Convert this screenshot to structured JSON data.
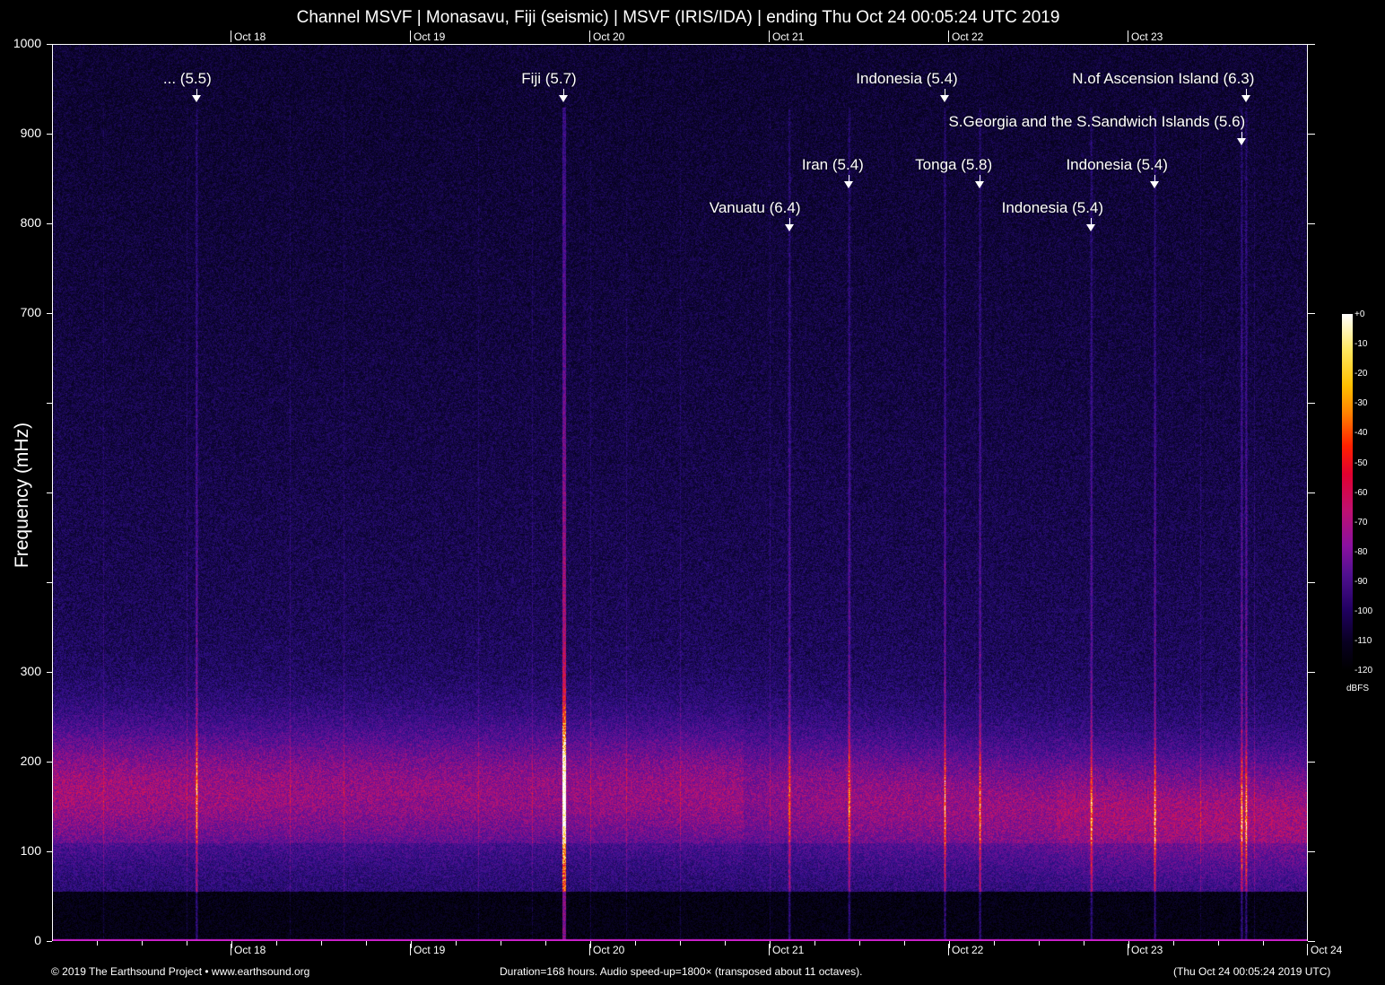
{
  "header": {
    "title": "Channel MSVF | Monasavu, Fiji (seismic) | MSVF (IRIS/IDA) | ending Thu Oct 24 00:05:24 UTC 2019"
  },
  "footer": {
    "copyright": "© 2019 The Earthsound Project • www.earthsound.org",
    "info": "Duration=168 hours. Audio speed-up=1800× (transposed about 11 octaves).",
    "end_time": "(Thu Oct 24 00:05:24 2019 UTC)"
  },
  "chart_data": {
    "type": "heatmap",
    "title": "Channel MSVF | Monasavu, Fiji (seismic) | MSVF (IRIS/IDA) | ending Thu Oct 24 00:05:24 UTC 2019",
    "xlabel": "",
    "ylabel": "Frequency (mHz)",
    "xlim_hours": [
      0,
      168
    ],
    "ylim": [
      0,
      1000
    ],
    "x_ticks": [
      {
        "label": "Oct 18",
        "hours": 24
      },
      {
        "label": "Oct 19",
        "hours": 48
      },
      {
        "label": "Oct 20",
        "hours": 72
      },
      {
        "label": "Oct 21",
        "hours": 96
      },
      {
        "label": "Oct 22",
        "hours": 120
      },
      {
        "label": "Oct 23",
        "hours": 144
      },
      {
        "label": "Oct 24",
        "hours": 168
      }
    ],
    "y_ticks": [
      {
        "v": 0,
        "label": "0"
      },
      {
        "v": 100,
        "label": "100"
      },
      {
        "v": 200,
        "label": "200"
      },
      {
        "v": 300,
        "label": "300"
      },
      {
        "v": 400,
        "label": ""
      },
      {
        "v": 500,
        "label": ""
      },
      {
        "v": 600,
        "label": ""
      },
      {
        "v": 700,
        "label": "700"
      },
      {
        "v": 800,
        "label": "800"
      },
      {
        "v": 900,
        "label": "900"
      },
      {
        "v": 1000,
        "label": "1000"
      }
    ],
    "colorbar": {
      "label": "dBFS",
      "ticks": [
        "+0",
        "-10",
        "-20",
        "-30",
        "-40",
        "-50",
        "-60",
        "-70",
        "-80",
        "-90",
        "-100",
        "-110",
        "-120"
      ],
      "range": [
        -120,
        0
      ]
    },
    "noise_band": {
      "early_center_mHz": 170,
      "late_center_mHz": 140
    },
    "events": [
      {
        "label": "... (5.5)",
        "hours": 19.3
      },
      {
        "label": "Fiji (5.7)",
        "hours": 68.4
      },
      {
        "label": "Vanuatu (6.4)",
        "hours": 98.6
      },
      {
        "label": "Iran (5.4)",
        "hours": 106.6
      },
      {
        "label": "Indonesia (5.4)",
        "hours": 119.4
      },
      {
        "label": "Tonga (5.8)",
        "hours": 124.1
      },
      {
        "label": "Indonesia (5.4)",
        "hours": 139.0
      },
      {
        "label": "Indonesia (5.4)",
        "hours": 147.5
      },
      {
        "label": "N.of Ascension Island (6.3)",
        "hours": 159.7
      },
      {
        "label": "S.Georgia and the S.Sandwich Islands (5.6)",
        "hours": 159.1
      }
    ]
  }
}
